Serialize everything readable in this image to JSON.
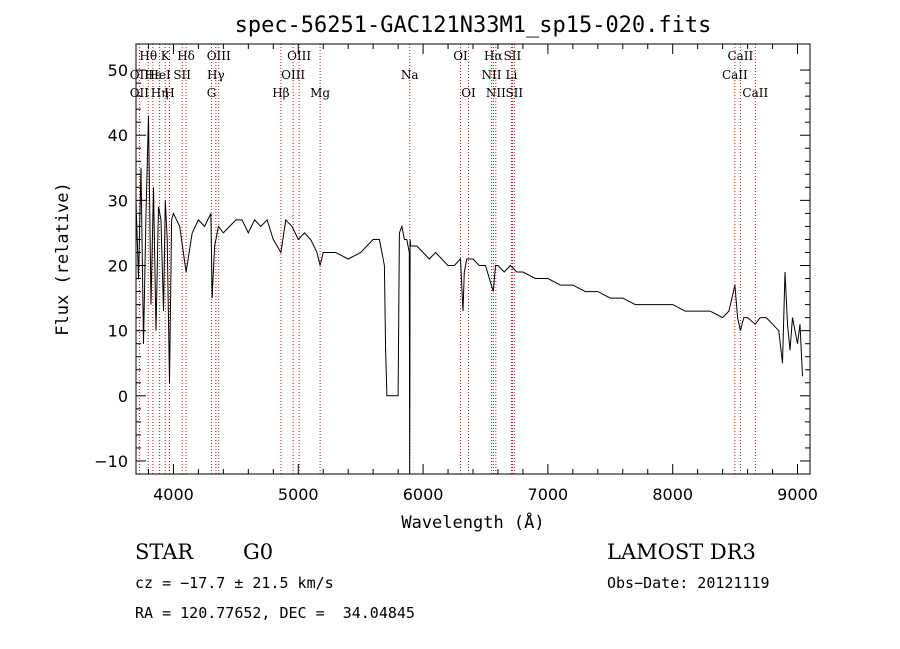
{
  "chart_data": {
    "type": "line",
    "title": "spec-56251-GAC121N33M1_sp15-020.fits",
    "xlabel": "Wavelength (Å)",
    "ylabel": "Flux (relative)",
    "xlim": [
      3700,
      9100
    ],
    "ylim": [
      -12,
      54
    ],
    "xticks": [
      4000,
      5000,
      6000,
      7000,
      8000,
      9000
    ],
    "yticks": [
      -10,
      0,
      10,
      20,
      30,
      40,
      50
    ],
    "spectrum": {
      "name": "flux",
      "color": "#000000",
      "x": [
        3700,
        3720,
        3740,
        3760,
        3780,
        3800,
        3820,
        3840,
        3860,
        3880,
        3900,
        3920,
        3935,
        3950,
        3968,
        3985,
        4000,
        4050,
        4101,
        4150,
        4200,
        4250,
        4300,
        4310,
        4330,
        4340,
        4360,
        4400,
        4450,
        4500,
        4550,
        4600,
        4650,
        4700,
        4750,
        4800,
        4861,
        4900,
        4950,
        5000,
        5050,
        5100,
        5150,
        5175,
        5200,
        5300,
        5400,
        5500,
        5600,
        5650,
        5690,
        5700,
        5710,
        5720,
        5730,
        5740,
        5750,
        5760,
        5770,
        5780,
        5790,
        5800,
        5810,
        5830,
        5850,
        5870,
        5890,
        5893,
        5896,
        5900,
        5920,
        5950,
        6000,
        6050,
        6100,
        6150,
        6200,
        6250,
        6300,
        6320,
        6330,
        6350,
        6400,
        6450,
        6500,
        6563,
        6580,
        6600,
        6650,
        6700,
        6750,
        6800,
        6900,
        7000,
        7100,
        7200,
        7300,
        7400,
        7500,
        7600,
        7700,
        7800,
        7900,
        8000,
        8100,
        8200,
        8300,
        8400,
        8450,
        8498,
        8520,
        8542,
        8570,
        8600,
        8662,
        8700,
        8750,
        8800,
        8850,
        8880,
        8900,
        8920,
        8940,
        8960,
        8980,
        9000,
        9020,
        9040
      ],
      "y": [
        30,
        18,
        35,
        8,
        28,
        43,
        14,
        32,
        10,
        29,
        27,
        13,
        30,
        24,
        2,
        27,
        28,
        26,
        19,
        25,
        27,
        26,
        28,
        15,
        23,
        24,
        26,
        25,
        26,
        27,
        27,
        25,
        27,
        26,
        27,
        24,
        22,
        27,
        26,
        24,
        25,
        24,
        22,
        20,
        22,
        22,
        21,
        22,
        24,
        24,
        20,
        7,
        0,
        0,
        0,
        0,
        0,
        0,
        0,
        0,
        0,
        0,
        25,
        26,
        24,
        24,
        22,
        -12,
        24,
        23,
        23,
        23,
        22,
        21,
        22,
        21,
        20,
        20,
        21,
        13,
        19,
        21,
        21,
        20,
        20,
        16,
        20,
        20,
        19,
        20,
        19,
        19,
        18,
        18,
        17,
        17,
        16,
        16,
        15,
        15,
        14,
        14,
        14,
        14,
        13,
        13,
        13,
        12,
        13,
        17,
        12,
        10,
        12,
        12,
        11,
        12,
        12,
        11,
        10,
        5,
        19,
        11,
        7,
        12,
        10,
        8,
        11,
        3
      ]
    },
    "line_markers": [
      {
        "label": "Hθ",
        "x": 3798,
        "row": 0
      },
      {
        "label": "OII",
        "x": 3727,
        "row": 1
      },
      {
        "label": "OII",
        "x": 3727,
        "row": 2
      },
      {
        "label": "Hε",
        "x": 3835,
        "row": 1
      },
      {
        "label": "Hη",
        "x": 3889,
        "row": 2
      },
      {
        "label": "K",
        "x": 3934,
        "row": 0
      },
      {
        "label": "HeI",
        "x": 3889,
        "row": 1
      },
      {
        "label": "SII",
        "x": 4070,
        "row": 1
      },
      {
        "label": "H",
        "x": 3968,
        "row": 2
      },
      {
        "label": "Hδ",
        "x": 4101,
        "row": 0
      },
      {
        "label": "OIII",
        "x": 4363,
        "row": 0
      },
      {
        "label": "Hγ",
        "x": 4340,
        "row": 1
      },
      {
        "label": "G",
        "x": 4305,
        "row": 2
      },
      {
        "label": "Hβ",
        "x": 4861,
        "row": 2
      },
      {
        "label": "OIII",
        "x": 5007,
        "row": 0
      },
      {
        "label": "OIII",
        "x": 4959,
        "row": 1
      },
      {
        "label": "Mg",
        "x": 5175,
        "row": 2
      },
      {
        "label": "Na",
        "x": 5893,
        "row": 1
      },
      {
        "label": "OI",
        "x": 6300,
        "row": 0
      },
      {
        "label": "OI",
        "x": 6364,
        "row": 2
      },
      {
        "label": "Hα",
        "x": 6563,
        "row": 0
      },
      {
        "label": "SII",
        "x": 6716,
        "row": 0
      },
      {
        "label": "NII",
        "x": 6548,
        "row": 1
      },
      {
        "label": "Li",
        "x": 6708,
        "row": 1
      },
      {
        "label": "NII",
        "x": 6583,
        "row": 2
      },
      {
        "label": "SII",
        "x": 6731,
        "row": 2
      },
      {
        "label": "CaII",
        "x": 8542,
        "row": 0
      },
      {
        "label": "CaII",
        "x": 8498,
        "row": 1
      },
      {
        "label": "CaII",
        "x": 8662,
        "row": 2
      }
    ],
    "marker_color": "#b02020"
  },
  "info": {
    "object_class": "STAR",
    "subclass": "G0",
    "survey": "LAMOST DR3",
    "redshift": "cz = −17.7 ± 21.5 km/s",
    "obs_date": "Obs−Date: 20121119",
    "coords": "RA = 120.77652, DEC =  34.04845"
  }
}
